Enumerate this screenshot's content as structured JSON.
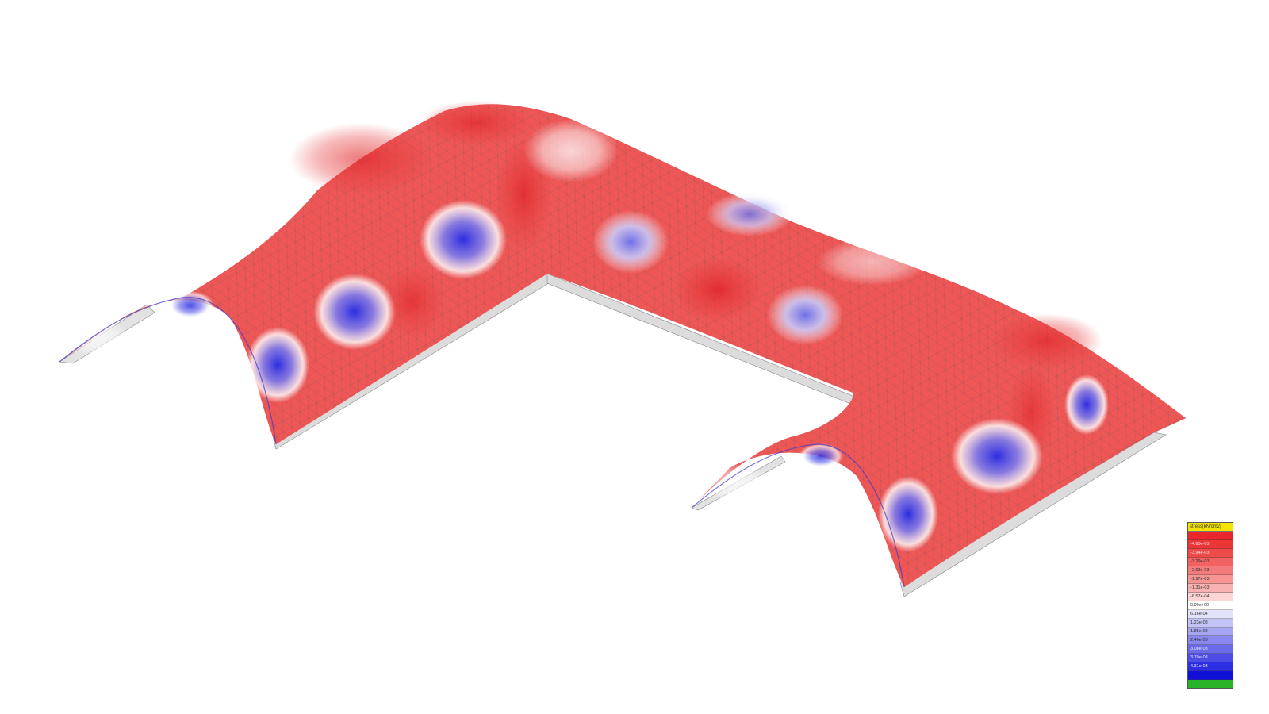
{
  "legend": {
    "title": "stress[kN/cm2]",
    "entries": [
      {
        "label": "",
        "color": "#e8262b"
      },
      {
        "label": "-4.60e-03",
        "color": "#ec3535"
      },
      {
        "label": "-3.94e-03",
        "color": "#ef4a4a"
      },
      {
        "label": "-3.29e-03",
        "color": "#f26262"
      },
      {
        "label": "-2.63e-03",
        "color": "#f47b7b"
      },
      {
        "label": "-1.97e-03",
        "color": "#f79595"
      },
      {
        "label": "-1.31e-03",
        "color": "#f9b2b2"
      },
      {
        "label": "-6.57e-04",
        "color": "#fcd4d4"
      },
      {
        "label": "0.00e+00",
        "color": "#ffffff"
      },
      {
        "label": "6.16e-04",
        "color": "#e2e2fb"
      },
      {
        "label": "1.23e-03",
        "color": "#c3c3f7"
      },
      {
        "label": "1.85e-03",
        "color": "#a5a5f3"
      },
      {
        "label": "2.46e-03",
        "color": "#8787ef"
      },
      {
        "label": "3.08e-03",
        "color": "#6a6aeb"
      },
      {
        "label": "3.70e-03",
        "color": "#4d4de6"
      },
      {
        "label": "4.31e-03",
        "color": "#2e2ee2"
      },
      {
        "label": "",
        "color": "#1010d8"
      },
      {
        "label": "",
        "color": "#27b427"
      }
    ]
  },
  "colors": {
    "compression": "#e8262b",
    "tension": "#2828d8",
    "neutral": "#ffffff",
    "mesh": "#6b6b6b",
    "base": "#d6d6d6"
  }
}
